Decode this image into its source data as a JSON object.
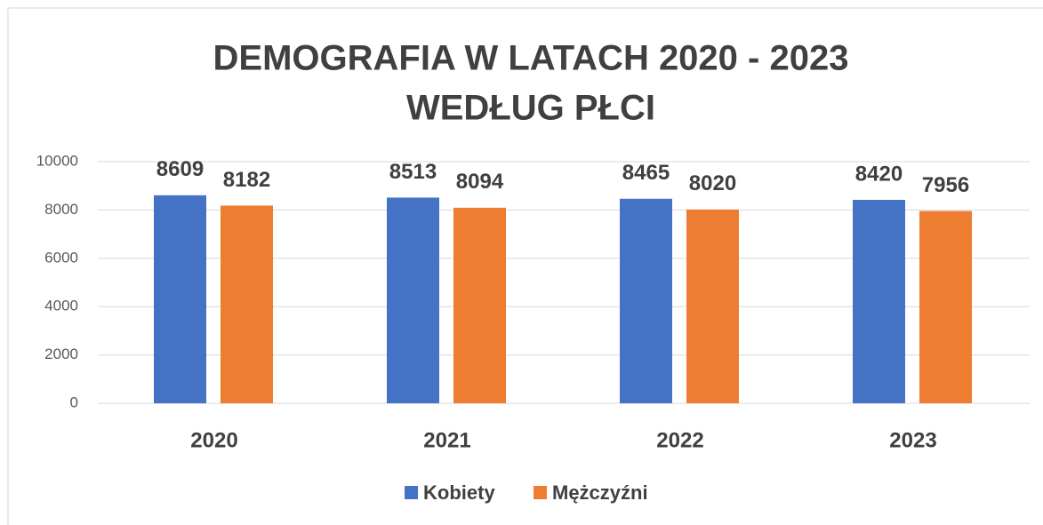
{
  "chart_data": {
    "type": "bar",
    "title": [
      "DEMOGRAFIA W LATACH 2020 - 2023",
      "WEDŁUG PŁCI"
    ],
    "categories": [
      "2020",
      "2021",
      "2022",
      "2023"
    ],
    "series": [
      {
        "name": "Kobiety",
        "color": "#4472c4",
        "values": [
          8609,
          8513,
          8465,
          8420
        ]
      },
      {
        "name": "Mężczyźni",
        "color": "#ed7d31",
        "values": [
          8182,
          8094,
          8020,
          7956
        ]
      }
    ],
    "ylim": [
      0,
      10000
    ],
    "yticks": [
      0,
      2000,
      4000,
      6000,
      8000,
      10000
    ],
    "grid": true,
    "legend": "bottom"
  }
}
